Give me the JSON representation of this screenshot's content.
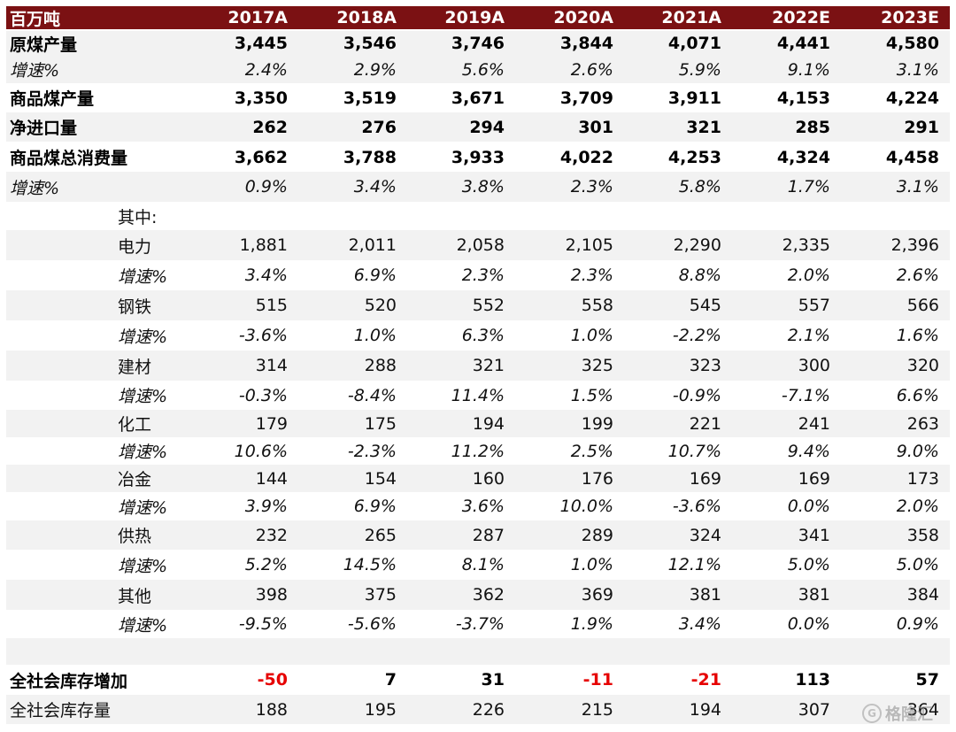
{
  "header": {
    "unit": "百万吨",
    "years": [
      "2017A",
      "2018A",
      "2019A",
      "2020A",
      "2021A",
      "2022E",
      "2023E"
    ]
  },
  "rows": [
    {
      "label": "原煤产量",
      "style": "bold",
      "indent": false,
      "shade": true,
      "values": [
        "3,445",
        "3,546",
        "3,746",
        "3,844",
        "4,071",
        "4,441",
        "4,580"
      ]
    },
    {
      "label": "增速%",
      "style": "ital",
      "indent": false,
      "shade": true,
      "values": [
        "2.4%",
        "2.9%",
        "5.6%",
        "2.6%",
        "5.9%",
        "9.1%",
        "3.1%"
      ]
    },
    {
      "label": "商品煤产量",
      "style": "bold",
      "indent": false,
      "shade": false,
      "values": [
        "3,350",
        "3,519",
        "3,671",
        "3,709",
        "3,911",
        "4,153",
        "4,224"
      ]
    },
    {
      "label": "净进口量",
      "style": "bold",
      "indent": false,
      "shade": true,
      "values": [
        "262",
        "276",
        "294",
        "301",
        "321",
        "285",
        "291"
      ]
    },
    {
      "label": "商品煤总消费量",
      "style": "bold",
      "indent": false,
      "shade": false,
      "values": [
        "3,662",
        "3,788",
        "3,933",
        "4,022",
        "4,253",
        "4,324",
        "4,458"
      ]
    },
    {
      "label": "增速%",
      "style": "ital",
      "indent": false,
      "shade": true,
      "values": [
        "0.9%",
        "3.4%",
        "3.8%",
        "2.3%",
        "5.8%",
        "1.7%",
        "3.1%"
      ]
    },
    {
      "label": "其中:",
      "style": "plain",
      "indent": true,
      "shade": false,
      "values": [
        "",
        "",
        "",
        "",
        "",
        "",
        ""
      ]
    },
    {
      "label": "电力",
      "style": "plain",
      "indent": true,
      "shade": true,
      "values": [
        "1,881",
        "2,011",
        "2,058",
        "2,105",
        "2,290",
        "2,335",
        "2,396"
      ]
    },
    {
      "label": "增速%",
      "style": "ital",
      "indent": true,
      "shade": false,
      "values": [
        "3.4%",
        "6.9%",
        "2.3%",
        "2.3%",
        "8.8%",
        "2.0%",
        "2.6%"
      ]
    },
    {
      "label": "钢铁",
      "style": "plain",
      "indent": true,
      "shade": true,
      "values": [
        "515",
        "520",
        "552",
        "558",
        "545",
        "557",
        "566"
      ]
    },
    {
      "label": "增速%",
      "style": "ital",
      "indent": true,
      "shade": false,
      "values": [
        "-3.6%",
        "1.0%",
        "6.3%",
        "1.0%",
        "-2.2%",
        "2.1%",
        "1.6%"
      ]
    },
    {
      "label": "建材",
      "style": "plain",
      "indent": true,
      "shade": true,
      "values": [
        "314",
        "288",
        "321",
        "325",
        "323",
        "300",
        "320"
      ]
    },
    {
      "label": "增速%",
      "style": "ital",
      "indent": true,
      "shade": false,
      "values": [
        "-0.3%",
        "-8.4%",
        "11.4%",
        "1.5%",
        "-0.9%",
        "-7.1%",
        "6.6%"
      ]
    },
    {
      "label": "化工",
      "style": "plain",
      "indent": true,
      "shade": true,
      "values": [
        "179",
        "175",
        "194",
        "199",
        "221",
        "241",
        "263"
      ]
    },
    {
      "label": "增速%",
      "style": "ital",
      "indent": true,
      "shade": false,
      "values": [
        "10.6%",
        "-2.3%",
        "11.2%",
        "2.5%",
        "10.7%",
        "9.4%",
        "9.0%"
      ]
    },
    {
      "label": "冶金",
      "style": "plain",
      "indent": true,
      "shade": true,
      "values": [
        "144",
        "154",
        "160",
        "176",
        "169",
        "169",
        "173"
      ]
    },
    {
      "label": "增速%",
      "style": "ital",
      "indent": true,
      "shade": false,
      "values": [
        "3.9%",
        "6.9%",
        "3.6%",
        "10.0%",
        "-3.6%",
        "0.0%",
        "2.0%"
      ]
    },
    {
      "label": "供热",
      "style": "plain",
      "indent": true,
      "shade": true,
      "values": [
        "232",
        "265",
        "287",
        "289",
        "324",
        "341",
        "358"
      ]
    },
    {
      "label": "增速%",
      "style": "ital",
      "indent": true,
      "shade": false,
      "values": [
        "5.2%",
        "14.5%",
        "8.1%",
        "1.0%",
        "12.1%",
        "5.0%",
        "5.0%"
      ]
    },
    {
      "label": "其他",
      "style": "plain",
      "indent": true,
      "shade": true,
      "values": [
        "398",
        "375",
        "362",
        "369",
        "381",
        "381",
        "384"
      ]
    },
    {
      "label": "增速%",
      "style": "ital",
      "indent": true,
      "shade": false,
      "values": [
        "-9.5%",
        "-5.6%",
        "-3.7%",
        "1.9%",
        "3.4%",
        "0.0%",
        "0.9%"
      ]
    },
    {
      "label": "",
      "style": "plain",
      "indent": false,
      "shade": true,
      "values": [
        "",
        "",
        "",
        "",
        "",
        "",
        ""
      ]
    },
    {
      "label": "全社会库存增加",
      "style": "bold",
      "indent": false,
      "shade": false,
      "values": [
        "-50",
        "7",
        "31",
        "-11",
        "-21",
        "113",
        "57"
      ],
      "red": [
        true,
        false,
        false,
        true,
        true,
        false,
        false
      ]
    },
    {
      "label": "全社会库存量",
      "style": "plain",
      "indent": false,
      "shade": true,
      "values": [
        "188",
        "195",
        "226",
        "215",
        "194",
        "307",
        "364"
      ]
    }
  ],
  "watermark": {
    "icon": "gelonghui-logo-icon",
    "text": "格隆汇"
  },
  "colors": {
    "header_bg": "#7b1113",
    "shade": "#f2f2f2",
    "negative": "#e60000"
  }
}
